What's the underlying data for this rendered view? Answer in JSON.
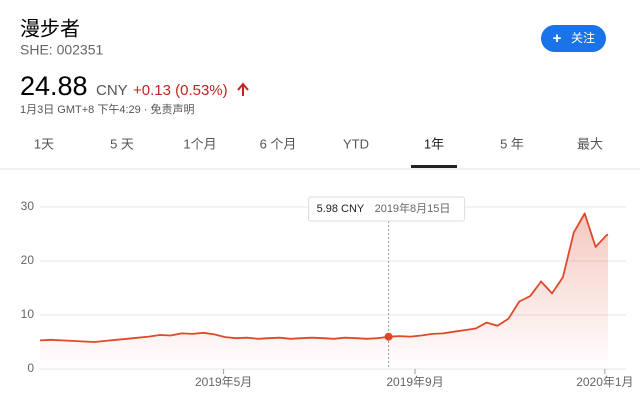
{
  "header": {
    "name": "漫步者",
    "ticker": "SHE: 002351",
    "price": "24.88",
    "currency": "CNY",
    "change": "+0.13 (0.53%)",
    "timestamp": "1月3日 GMT+8 下午4:29 · 免责声明",
    "follow": "关注"
  },
  "tabs": [
    "1天",
    "5 天",
    "1个月",
    "6 个月",
    "YTD",
    "1年",
    "5 年",
    "最大"
  ],
  "chart_data": {
    "type": "line",
    "x": [
      "2019-01-03",
      "2019-01-10",
      "2019-01-17",
      "2019-01-24",
      "2019-01-31",
      "2019-02-07",
      "2019-02-14",
      "2019-02-21",
      "2019-02-28",
      "2019-03-07",
      "2019-03-14",
      "2019-03-21",
      "2019-03-28",
      "2019-04-04",
      "2019-04-11",
      "2019-04-18",
      "2019-04-25",
      "2019-05-02",
      "2019-05-09",
      "2019-05-16",
      "2019-05-23",
      "2019-05-30",
      "2019-06-06",
      "2019-06-13",
      "2019-06-20",
      "2019-06-27",
      "2019-07-04",
      "2019-07-11",
      "2019-07-18",
      "2019-07-25",
      "2019-08-01",
      "2019-08-08",
      "2019-08-15",
      "2019-08-22",
      "2019-08-29",
      "2019-09-05",
      "2019-09-12",
      "2019-09-19",
      "2019-09-26",
      "2019-10-03",
      "2019-10-10",
      "2019-10-17",
      "2019-10-24",
      "2019-10-31",
      "2019-11-07",
      "2019-11-14",
      "2019-11-21",
      "2019-11-28",
      "2019-12-05",
      "2019-12-12",
      "2019-12-19",
      "2019-12-26",
      "2020-01-02",
      "2020-01-03"
    ],
    "series": [
      {
        "color": "#e0482a",
        "values": [
          5.3,
          5.4,
          5.3,
          5.2,
          5.1,
          5.0,
          5.2,
          5.4,
          5.6,
          5.8,
          6.0,
          6.3,
          6.2,
          6.6,
          6.5,
          6.7,
          6.4,
          5.9,
          5.7,
          5.8,
          5.6,
          5.7,
          5.8,
          5.6,
          5.7,
          5.8,
          5.7,
          5.6,
          5.8,
          5.7,
          5.6,
          5.7,
          5.98,
          6.1,
          6.0,
          6.2,
          6.5,
          6.6,
          6.9,
          7.2,
          7.5,
          8.6,
          8.0,
          9.3,
          12.5,
          13.5,
          16.2,
          14.0,
          17.0,
          25.3,
          28.8,
          22.6,
          24.75,
          24.88
        ]
      }
    ],
    "xlim": [
      "2019-01-03",
      "2020-01-03"
    ],
    "xticks": [
      {
        "value": "2019-05-01",
        "label": "2019年5月"
      },
      {
        "value": "2019-09-01",
        "label": "2019年9月"
      },
      {
        "value": "2020-01-01",
        "label": "2020年1月"
      }
    ],
    "ylim": [
      0,
      30
    ],
    "yticks": [
      0,
      10,
      20,
      30
    ],
    "grid": true,
    "tooltip": {
      "x": "2019-08-15",
      "value": 5.98,
      "value_label": "5.98 CNY",
      "date_label": "2019年8月15日"
    }
  }
}
